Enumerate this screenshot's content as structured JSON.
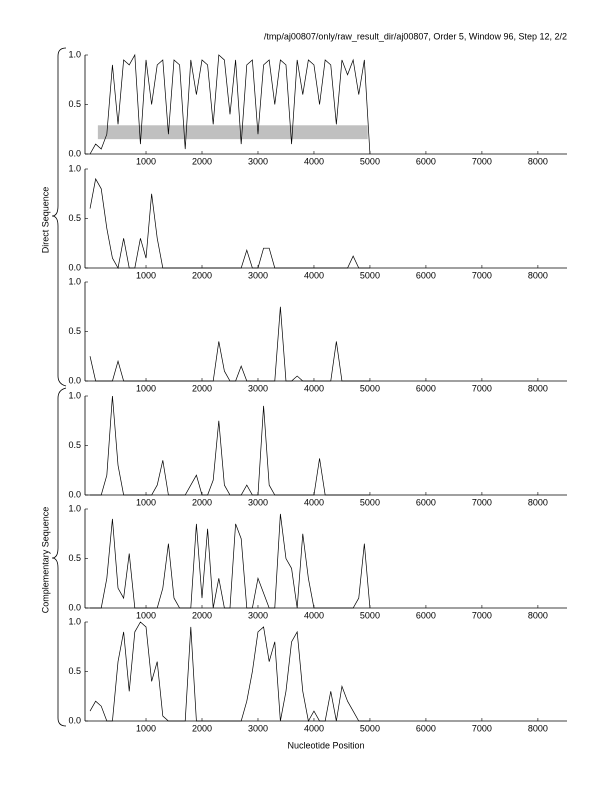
{
  "title": "/tmp/aj00807/only/raw_result_dir/aj00807, Order 5, Window 96, Step 12, 2/2",
  "x_label": "Nucleotide Position",
  "group_labels": [
    "Direct Sequence",
    "Complementary Sequence"
  ],
  "chart_data": [
    {
      "type": "line",
      "x": [
        0,
        100,
        200,
        300,
        400,
        500,
        600,
        700,
        800,
        900,
        1000,
        1100,
        1200,
        1300,
        1400,
        1500,
        1600,
        1700,
        1800,
        1900,
        2000,
        2100,
        2200,
        2300,
        2400,
        2500,
        2600,
        2700,
        2800,
        2900,
        3000,
        3100,
        3200,
        3300,
        3400,
        3500,
        3600,
        3700,
        3800,
        3900,
        4000,
        4100,
        4200,
        4300,
        4400,
        4500,
        4600,
        4700,
        4800,
        4900,
        5000
      ],
      "series": [
        {
          "color": "#000000",
          "values": [
            0,
            0.1,
            0.05,
            0.2,
            0.9,
            0.3,
            0.95,
            0.9,
            1,
            0.1,
            0.95,
            0.5,
            0.9,
            0.95,
            0.2,
            0.95,
            0.9,
            0.05,
            0.95,
            0.6,
            0.95,
            0.9,
            0.3,
            1,
            0.95,
            0.4,
            0.95,
            0.1,
            0.9,
            0.95,
            0.2,
            0.9,
            0.95,
            0.5,
            0.95,
            0.9,
            0.1,
            0.95,
            0.6,
            0.95,
            0.9,
            0.5,
            0.95,
            0.9,
            0.3,
            0.95,
            0.8,
            0.95,
            0.6,
            0.95,
            0
          ]
        }
      ],
      "band": {
        "x": [
          140,
          4960
        ],
        "y": [
          0.15,
          0.29
        ],
        "color": "#c0c0c0"
      },
      "xlim": [
        -90,
        8520
      ],
      "ylim": [
        0,
        1
      ],
      "xticks": [
        1000,
        2000,
        3000,
        4000,
        5000,
        6000,
        7000,
        8000
      ],
      "yticks": [
        {
          "value": 0,
          "label": "0.0"
        },
        0.5,
        {
          "value": 1,
          "label": "1.0"
        }
      ]
    },
    {
      "type": "line",
      "x": [
        0,
        100,
        200,
        300,
        400,
        500,
        600,
        700,
        800,
        900,
        1000,
        1100,
        1200,
        1300,
        1400,
        1500,
        1600,
        1700,
        1800,
        1900,
        2000,
        2100,
        2200,
        2300,
        2400,
        2500,
        2600,
        2700,
        2800,
        2900,
        3000,
        3100,
        3200,
        3300,
        3400,
        3500,
        3600,
        3700,
        3800,
        3900,
        4000,
        4100,
        4200,
        4300,
        4400,
        4500,
        4600,
        4700,
        4800,
        4900,
        5000
      ],
      "series": [
        {
          "color": "#000000",
          "values": [
            0.6,
            0.9,
            0.8,
            0.4,
            0.1,
            0,
            0.3,
            0,
            0,
            0.3,
            0.1,
            0.75,
            0.3,
            0,
            0,
            0,
            0,
            0,
            0,
            0,
            0,
            0,
            0,
            0,
            0,
            0,
            0,
            0,
            0.18,
            0,
            0,
            0.2,
            0.2,
            0,
            0,
            0,
            0,
            0,
            0,
            0,
            0,
            0,
            0,
            0,
            0,
            0,
            0,
            0.12,
            0,
            0,
            0
          ]
        }
      ],
      "xlim": [
        -90,
        8520
      ],
      "ylim": [
        0,
        1
      ],
      "xticks": [
        1000,
        2000,
        3000,
        4000,
        5000,
        6000,
        7000,
        8000
      ],
      "yticks": [
        {
          "value": 0,
          "label": "0.0"
        },
        0.5,
        {
          "value": 1,
          "label": "1.0"
        }
      ]
    },
    {
      "type": "line",
      "x": [
        0,
        100,
        200,
        300,
        400,
        500,
        600,
        700,
        800,
        900,
        1000,
        1100,
        1200,
        1300,
        1400,
        1500,
        1600,
        1700,
        1800,
        1900,
        2000,
        2100,
        2200,
        2300,
        2400,
        2500,
        2600,
        2700,
        2800,
        2900,
        3000,
        3100,
        3200,
        3300,
        3400,
        3500,
        3600,
        3700,
        3800,
        3900,
        4000,
        4100,
        4200,
        4300,
        4400,
        4500,
        4600,
        4700,
        4800,
        4900,
        5000
      ],
      "series": [
        {
          "color": "#000000",
          "values": [
            0.25,
            0,
            0,
            0,
            0,
            0.2,
            0,
            0,
            0,
            0,
            0,
            0,
            0,
            0,
            0,
            0,
            0,
            0,
            0,
            0,
            0,
            0,
            0,
            0.4,
            0.1,
            0,
            0,
            0.15,
            0,
            0,
            0,
            0,
            0,
            0,
            0.75,
            0,
            0,
            0.05,
            0,
            0,
            0,
            0,
            0,
            0,
            0.4,
            0,
            0,
            0,
            0,
            0,
            0
          ]
        }
      ],
      "xlim": [
        -90,
        8520
      ],
      "ylim": [
        0,
        1
      ],
      "xticks": [
        1000,
        2000,
        3000,
        4000,
        5000,
        6000,
        7000,
        8000
      ],
      "yticks": [
        {
          "value": 0,
          "label": "0.0"
        },
        0.5,
        {
          "value": 1,
          "label": "1.0"
        }
      ]
    },
    {
      "type": "line",
      "x": [
        0,
        100,
        200,
        300,
        400,
        500,
        600,
        700,
        800,
        900,
        1000,
        1100,
        1200,
        1300,
        1400,
        1500,
        1600,
        1700,
        1800,
        1900,
        2000,
        2100,
        2200,
        2300,
        2400,
        2500,
        2600,
        2700,
        2800,
        2900,
        3000,
        3100,
        3200,
        3300,
        3400,
        3500,
        3600,
        3700,
        3800,
        3900,
        4000,
        4100,
        4200,
        4300,
        4400,
        4500,
        4600,
        4700,
        4800,
        4900,
        5000
      ],
      "series": [
        {
          "color": "#000000",
          "values": [
            0,
            0,
            0,
            0.2,
            1,
            0.3,
            0,
            0,
            0,
            0,
            0,
            0,
            0.1,
            0.35,
            0,
            0,
            0,
            0,
            0.1,
            0.2,
            0,
            0,
            0.15,
            0.75,
            0.1,
            0,
            0,
            0,
            0.1,
            0,
            0,
            0.9,
            0.1,
            0,
            0,
            0,
            0,
            0,
            0,
            0,
            0,
            0.37,
            0,
            0,
            0,
            0,
            0,
            0,
            0,
            0,
            0
          ]
        }
      ],
      "xlim": [
        -90,
        8520
      ],
      "ylim": [
        0,
        1
      ],
      "xticks": [
        1000,
        2000,
        3000,
        4000,
        5000,
        6000,
        7000,
        8000
      ],
      "yticks": [
        {
          "value": 0,
          "label": "0.0"
        },
        0.5,
        {
          "value": 1,
          "label": "1.0"
        }
      ]
    },
    {
      "type": "line",
      "x": [
        0,
        100,
        200,
        300,
        400,
        500,
        600,
        700,
        800,
        900,
        1000,
        1100,
        1200,
        1300,
        1400,
        1500,
        1600,
        1700,
        1800,
        1900,
        2000,
        2100,
        2200,
        2300,
        2400,
        2500,
        2600,
        2700,
        2800,
        2900,
        3000,
        3100,
        3200,
        3300,
        3400,
        3500,
        3600,
        3700,
        3800,
        3900,
        4000,
        4100,
        4200,
        4300,
        4400,
        4500,
        4600,
        4700,
        4800,
        4900,
        5000
      ],
      "series": [
        {
          "color": "#000000",
          "values": [
            0,
            0,
            0,
            0.3,
            0.9,
            0.2,
            0.1,
            0.55,
            0,
            0,
            0,
            0,
            0,
            0.2,
            0.65,
            0.1,
            0,
            0,
            0,
            0.85,
            0.1,
            0.8,
            0,
            0.3,
            0,
            0,
            0.85,
            0.7,
            0,
            0,
            0.3,
            0.15,
            0,
            0,
            0.95,
            0.5,
            0.4,
            0,
            0.75,
            0.3,
            0,
            0,
            0,
            0,
            0,
            0,
            0,
            0,
            0.1,
            0.65,
            0
          ]
        }
      ],
      "xlim": [
        -90,
        8520
      ],
      "ylim": [
        0,
        1
      ],
      "xticks": [
        1000,
        2000,
        3000,
        4000,
        5000,
        6000,
        7000,
        8000
      ],
      "yticks": [
        {
          "value": 0,
          "label": "0.0"
        },
        0.5,
        {
          "value": 1,
          "label": "1.0"
        }
      ]
    },
    {
      "type": "line",
      "x": [
        0,
        100,
        200,
        300,
        400,
        500,
        600,
        700,
        800,
        900,
        1000,
        1100,
        1200,
        1300,
        1400,
        1500,
        1600,
        1700,
        1800,
        1900,
        2000,
        2100,
        2200,
        2300,
        2400,
        2500,
        2600,
        2700,
        2800,
        2900,
        3000,
        3100,
        3200,
        3300,
        3400,
        3500,
        3600,
        3700,
        3800,
        3900,
        4000,
        4100,
        4200,
        4300,
        4400,
        4500,
        4600,
        4700,
        4800,
        4900,
        5000
      ],
      "series": [
        {
          "color": "#000000",
          "values": [
            0.1,
            0.2,
            0.15,
            0,
            0,
            0.6,
            0.9,
            0.3,
            0.9,
            1,
            0.95,
            0.4,
            0.6,
            0.05,
            0,
            0,
            0,
            0,
            0.95,
            0,
            0,
            0,
            0,
            0,
            0,
            0,
            0,
            0,
            0.2,
            0.5,
            0.9,
            0.95,
            0.6,
            0.8,
            0,
            0.3,
            0.8,
            0.9,
            0.3,
            0,
            0.1,
            0,
            0,
            0.3,
            0,
            0.35,
            0.2,
            0.1,
            0,
            0,
            0
          ]
        }
      ],
      "xlim": [
        -90,
        8520
      ],
      "ylim": [
        0,
        1
      ],
      "xticks": [
        1000,
        2000,
        3000,
        4000,
        5000,
        6000,
        7000,
        8000
      ],
      "yticks": [
        {
          "value": 0,
          "label": "0.0"
        },
        0.5,
        {
          "value": 1,
          "label": "1.0"
        }
      ]
    }
  ]
}
